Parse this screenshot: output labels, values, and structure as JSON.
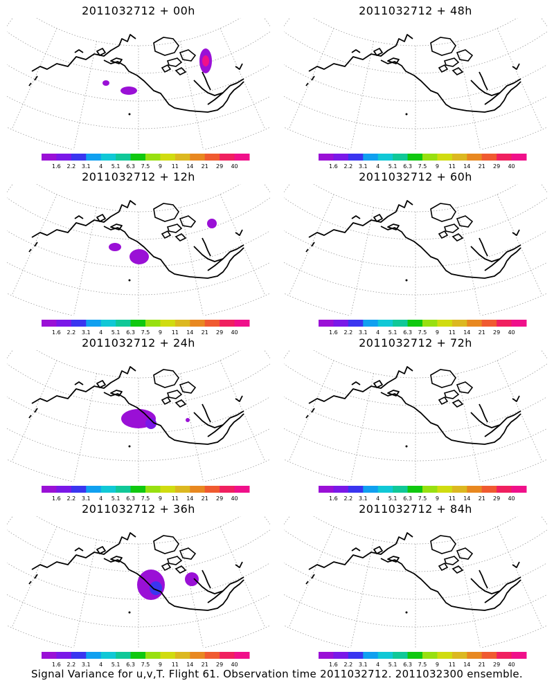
{
  "panels": [
    {
      "title": "2011032712 + 00h",
      "blobs": [
        [
          153,
          120,
          5,
          4,
          "#9a10d6"
        ],
        [
          186,
          131,
          12,
          6,
          "#9a10d6"
        ],
        [
          297,
          88,
          9,
          18,
          "#9a10d6"
        ],
        [
          297,
          88,
          5,
          8,
          "#f0108a"
        ]
      ]
    },
    {
      "title": "2011032712 + 48h",
      "blobs": [
        [
          233,
          98,
          25,
          10,
          "#9a10d6"
        ],
        [
          208,
          118,
          24,
          20,
          "#9a10d6"
        ],
        [
          222,
          123,
          12,
          14,
          "#7a18e8"
        ],
        [
          275,
          104,
          25,
          25,
          "#9a10d6"
        ],
        [
          275,
          100,
          15,
          10,
          "#7a18e8"
        ],
        [
          296,
          82,
          10,
          10,
          "#9a10d6"
        ]
      ]
    },
    {
      "title": "2011032712 + 12h",
      "blobs": [
        [
          166,
          357,
          9,
          6,
          "#9a10d6"
        ],
        [
          201,
          371,
          14,
          11,
          "#9a10d6"
        ],
        [
          306,
          323,
          7,
          7,
          "#9a10d6"
        ]
      ]
    },
    {
      "title": "2011032712 + 60h",
      "blobs": [
        [
          116,
          323,
          14,
          12,
          "#9a10d6"
        ],
        [
          114,
          346,
          8,
          8,
          "#9a10d6"
        ],
        [
          227,
          366,
          28,
          30,
          "#9a10d6"
        ],
        [
          236,
          380,
          12,
          14,
          "#3a35f0"
        ],
        [
          280,
          345,
          28,
          28,
          "#9a10d6"
        ],
        [
          278,
          340,
          14,
          14,
          "#7a18e8"
        ],
        [
          222,
          400,
          20,
          8,
          "#9a10d6"
        ],
        [
          306,
          325,
          8,
          12,
          "#9a10d6"
        ]
      ]
    },
    {
      "title": "2011032712 + 24h",
      "blobs": [
        [
          200,
          605,
          25,
          14,
          "#9a10d6"
        ],
        [
          218,
          612,
          8,
          8,
          "#7a18e8"
        ],
        [
          271,
          607,
          3,
          3,
          "#9a10d6"
        ]
      ]
    },
    {
      "title": "2011032712 + 72h",
      "blobs": [
        [
          150,
          588,
          45,
          16,
          "#9a10d6"
        ],
        [
          162,
          612,
          40,
          10,
          "#9a10d6"
        ],
        [
          233,
          610,
          30,
          25,
          "#9a10d6"
        ],
        [
          237,
          628,
          14,
          12,
          "#3a35f0"
        ],
        [
          275,
          585,
          30,
          30,
          "#9a10d6"
        ],
        [
          293,
          570,
          12,
          14,
          "#3a35f0"
        ],
        [
          130,
          565,
          28,
          10,
          "#9a10d6"
        ],
        [
          215,
          643,
          14,
          10,
          "#9a10d6"
        ],
        [
          96,
          575,
          6,
          6,
          "#9a10d6"
        ]
      ]
    },
    {
      "title": "2011032712 + 36h",
      "blobs": [
        [
          218,
          845,
          20,
          22,
          "#9a10d6"
        ],
        [
          225,
          850,
          9,
          10,
          "#3a35f0"
        ],
        [
          277,
          837,
          10,
          10,
          "#9a10d6"
        ]
      ]
    },
    {
      "title": "2011032712 + 84h",
      "blobs": [
        [
          145,
          840,
          60,
          30,
          "#9a10d6"
        ],
        [
          190,
          858,
          30,
          20,
          "#9a10d6"
        ],
        [
          229,
          862,
          30,
          25,
          "#9a10d6"
        ],
        [
          243,
          867,
          12,
          10,
          "#3a35f0"
        ],
        [
          270,
          830,
          35,
          35,
          "#9a10d6"
        ],
        [
          285,
          822,
          16,
          18,
          "#7a18e8"
        ],
        [
          298,
          815,
          8,
          10,
          "#3a35f0"
        ],
        [
          115,
          803,
          22,
          12,
          "#9a10d6"
        ],
        [
          305,
          860,
          10,
          14,
          "#9a10d6"
        ]
      ]
    }
  ],
  "legend": {
    "colors": [
      "#9a10d6",
      "#7a18e8",
      "#3a35f0",
      "#10a0f0",
      "#10c8d6",
      "#10c898",
      "#10c810",
      "#98e010",
      "#d0dc10",
      "#dcb820",
      "#e88820",
      "#f05a30",
      "#f02060",
      "#f0108a"
    ],
    "labels": [
      "1.6",
      "2.2",
      "3.1",
      "4",
      "5.1",
      "6.3",
      "7.5",
      "9",
      "11",
      "14",
      "21",
      "29",
      "40"
    ]
  },
  "caption": "Signal Variance for u,v,T. Flight 61. Observation time 2011032712. 2011032300 ensemble."
}
